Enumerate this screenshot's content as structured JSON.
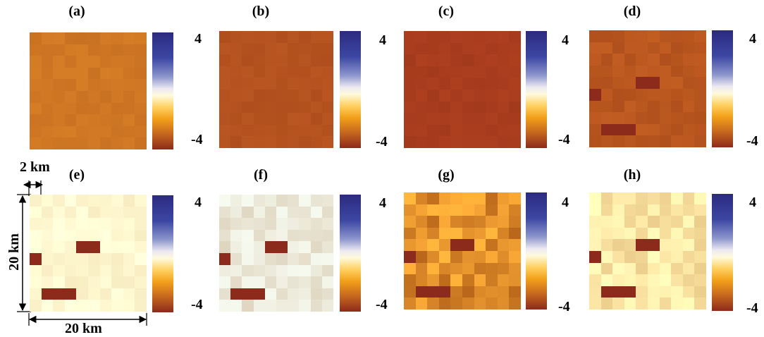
{
  "panels": [
    {
      "label": "(a)",
      "base": "#cf7724",
      "patches": [],
      "noise": 0.03
    },
    {
      "label": "(b)",
      "base": "#b5521f",
      "patches": [],
      "noise": 0.03
    },
    {
      "label": "(c)",
      "base": "#a93d1e",
      "patches": [],
      "noise": 0.03
    },
    {
      "label": "(d)",
      "base": "#b9561f",
      "patches": [
        {
          "r": 4,
          "c": 4,
          "w": 2,
          "h": 1
        },
        {
          "r": 5,
          "c": 0,
          "w": 1,
          "h": 1
        },
        {
          "r": 8,
          "c": 1,
          "w": 3,
          "h": 1
        }
      ],
      "noise": 0.05
    },
    {
      "label": "(e)",
      "base": "#fff8d0",
      "patches": [
        {
          "r": 4,
          "c": 4,
          "w": 2,
          "h": 1
        },
        {
          "r": 5,
          "c": 0,
          "w": 1,
          "h": 1
        },
        {
          "r": 8,
          "c": 1,
          "w": 3,
          "h": 1
        }
      ],
      "noise": 0.03
    },
    {
      "label": "(f)",
      "base": "#ebe8d8",
      "patches": [
        {
          "r": 4,
          "c": 4,
          "w": 2,
          "h": 1
        },
        {
          "r": 5,
          "c": 0,
          "w": 1,
          "h": 1
        },
        {
          "r": 8,
          "c": 1,
          "w": 3,
          "h": 1
        }
      ],
      "noise": 0.05
    },
    {
      "label": "(g)",
      "base": "#e2902c",
      "patches": [
        {
          "r": 4,
          "c": 4,
          "w": 2,
          "h": 1
        },
        {
          "r": 5,
          "c": 0,
          "w": 1,
          "h": 1
        },
        {
          "r": 8,
          "c": 1,
          "w": 3,
          "h": 1
        }
      ],
      "noise": 0.18
    },
    {
      "label": "(h)",
      "base": "#fde7a6",
      "patches": [
        {
          "r": 4,
          "c": 4,
          "w": 2,
          "h": 1
        },
        {
          "r": 5,
          "c": 0,
          "w": 1,
          "h": 1
        },
        {
          "r": 8,
          "c": 1,
          "w": 3,
          "h": 1
        }
      ],
      "noise": 0.07
    }
  ],
  "colorbar": {
    "max": "4",
    "min": "-4"
  },
  "scale": {
    "cell": "2 km",
    "vertical": "20 km",
    "horizontal": "20 km"
  },
  "colors": {
    "patch": "#8c2a1c"
  }
}
